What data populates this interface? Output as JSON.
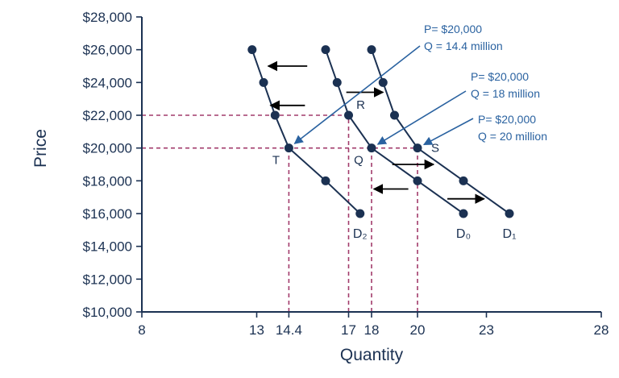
{
  "chart_data": {
    "type": "line",
    "title": "",
    "xlabel": "Quantity",
    "ylabel": "Price",
    "xlim": [
      8,
      28
    ],
    "ylim": [
      10000,
      28000
    ],
    "x_ticks": [
      {
        "value": 8,
        "label": "8"
      },
      {
        "value": 13,
        "label": "13"
      },
      {
        "value": 14.4,
        "label": "14.4"
      },
      {
        "value": 17,
        "label": "17"
      },
      {
        "value": 18,
        "label": "18"
      },
      {
        "value": 20,
        "label": "20"
      },
      {
        "value": 23,
        "label": "23"
      },
      {
        "value": 28,
        "label": "28"
      }
    ],
    "y_ticks": [
      {
        "value": 10000,
        "label": "$10,000"
      },
      {
        "value": 12000,
        "label": "$12,000"
      },
      {
        "value": 14000,
        "label": "$14,000"
      },
      {
        "value": 16000,
        "label": "$16,000"
      },
      {
        "value": 18000,
        "label": "$18,000"
      },
      {
        "value": 20000,
        "label": "$20,000"
      },
      {
        "value": 22000,
        "label": "$22,000"
      },
      {
        "value": 24000,
        "label": "$24,000"
      },
      {
        "value": 26000,
        "label": "$26,000"
      },
      {
        "value": 28000,
        "label": "$28,000"
      }
    ],
    "series": [
      {
        "name": "D2",
        "label": "D₂",
        "points": [
          [
            12.8,
            26000
          ],
          [
            13.3,
            24000
          ],
          [
            13.8,
            22000
          ],
          [
            14.4,
            20000
          ],
          [
            16,
            18000
          ],
          [
            17.5,
            16000
          ]
        ]
      },
      {
        "name": "D0",
        "label": "D₀",
        "points": [
          [
            16,
            26000
          ],
          [
            16.5,
            24000
          ],
          [
            17,
            22000
          ],
          [
            18,
            20000
          ],
          [
            20,
            18000
          ],
          [
            22,
            16000
          ]
        ]
      },
      {
        "name": "D1",
        "label": "D₁",
        "points": [
          [
            18,
            26000
          ],
          [
            18.5,
            24000
          ],
          [
            19,
            22000
          ],
          [
            20,
            20000
          ],
          [
            22,
            18000
          ],
          [
            24,
            16000
          ]
        ]
      }
    ],
    "points_labeled": [
      {
        "id": "T",
        "label": "T",
        "x": 14.4,
        "y": 20000
      },
      {
        "id": "Q",
        "label": "Q",
        "x": 18,
        "y": 20000
      },
      {
        "id": "R",
        "label": "R",
        "x": 17,
        "y": 22000
      },
      {
        "id": "S",
        "label": "S",
        "x": 20,
        "y": 20000
      }
    ],
    "reference_lines": [
      {
        "type": "horizontal",
        "y": 22000,
        "from_x": 8,
        "to_x": 17
      },
      {
        "type": "horizontal",
        "y": 20000,
        "from_x": 8,
        "to_x": 20
      },
      {
        "type": "vertical",
        "x": 14.4,
        "from_y": 10000,
        "to_y": 20000
      },
      {
        "type": "vertical",
        "x": 17,
        "from_y": 10000,
        "to_y": 22000
      },
      {
        "type": "vertical",
        "x": 18,
        "from_y": 10000,
        "to_y": 20000
      },
      {
        "type": "vertical",
        "x": 20,
        "from_y": 10000,
        "to_y": 20000
      }
    ],
    "shift_arrows": [
      {
        "direction": "left",
        "y": 25000,
        "x_from": 15.2,
        "x_to": 13.5
      },
      {
        "direction": "left",
        "y": 22600,
        "x_from": 15.1,
        "x_to": 13.6
      },
      {
        "direction": "right",
        "y": 23400,
        "x_from": 16.9,
        "x_to": 18.5
      },
      {
        "direction": "right",
        "y": 19000,
        "x_from": 18.9,
        "x_to": 20.7
      },
      {
        "direction": "left",
        "y": 17500,
        "x_from": 19.6,
        "x_to": 18.1
      },
      {
        "direction": "right",
        "y": 16900,
        "x_from": 21.3,
        "x_to": 22.9
      }
    ],
    "annotations": [
      {
        "id": "ann_T",
        "line1": "P= $20,000",
        "line2": "Q = 14.4 million",
        "target": "T"
      },
      {
        "id": "ann_Q",
        "line1": "P= $20,000",
        "line2": "Q = 18 million",
        "target": "Q"
      },
      {
        "id": "ann_S",
        "line1": "P= $20,000",
        "line2": "Q = 20 million",
        "target": "S"
      }
    ],
    "colors": {
      "curve": "#1b3152",
      "reference": "#a23b6b",
      "annotation": "#2a62a0",
      "arrow": "#000000",
      "text": "#1b3152"
    }
  }
}
